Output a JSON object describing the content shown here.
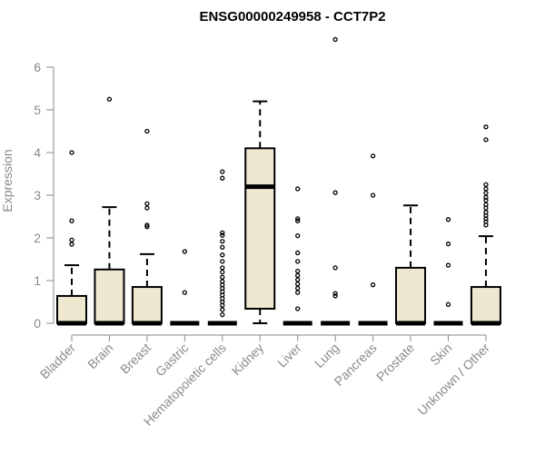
{
  "chart_data": {
    "type": "box",
    "title": "ENSG00000249958 - CCT7P2",
    "xlabel": "",
    "ylabel": "Expression",
    "ylim": [
      0,
      6.8
    ],
    "yticks": [
      "0",
      "1",
      "2",
      "3",
      "4",
      "5",
      "6"
    ],
    "grid": false,
    "box_fill": "#efe8d0",
    "box_stroke": "#000000",
    "axis_color": "#8a8a8a",
    "categories": [
      "Bladder",
      "Brain",
      "Breast",
      "Gastric",
      "Hematopoietic cells",
      "Kidney",
      "Liver",
      "Lung",
      "Pancreas",
      "Prostate",
      "Skin",
      "Unknown / Other"
    ],
    "boxes": [
      {
        "whisker_low": 0,
        "q1": 0,
        "median": 0,
        "q3": 0.64,
        "whisker_high": 1.36,
        "outliers": [
          1.85,
          1.95,
          2.4,
          4.0
        ]
      },
      {
        "whisker_low": 0,
        "q1": 0,
        "median": 0,
        "q3": 1.26,
        "whisker_high": 2.72,
        "outliers": [
          5.25
        ]
      },
      {
        "whisker_low": 0,
        "q1": 0,
        "median": 0,
        "q3": 0.85,
        "whisker_high": 1.62,
        "outliers": [
          2.26,
          2.3,
          2.7,
          2.8,
          4.5
        ]
      },
      {
        "whisker_low": 0,
        "q1": 0,
        "median": 0,
        "q3": 0,
        "whisker_high": 0,
        "outliers": [
          0.72,
          1.68
        ]
      },
      {
        "whisker_low": 0,
        "q1": 0,
        "median": 0,
        "q3": 0,
        "whisker_high": 0,
        "outliers": [
          0.2,
          0.32,
          0.42,
          0.5,
          0.58,
          0.66,
          0.74,
          0.82,
          0.9,
          0.98,
          1.08,
          1.2,
          1.3,
          1.45,
          1.6,
          1.78,
          1.92,
          2.06,
          2.12,
          3.4,
          3.55
        ]
      },
      {
        "whisker_low": 0,
        "q1": 0.34,
        "median": 3.2,
        "q3": 4.1,
        "whisker_high": 5.2,
        "outliers": []
      },
      {
        "whisker_low": 0,
        "q1": 0,
        "median": 0,
        "q3": 0,
        "whisker_high": 0,
        "outliers": [
          0.34,
          0.72,
          0.82,
          0.92,
          1.02,
          1.12,
          1.22,
          1.45,
          1.65,
          2.05,
          2.4,
          2.45,
          3.15
        ]
      },
      {
        "whisker_low": 0,
        "q1": 0,
        "median": 0,
        "q3": 0,
        "whisker_high": 0,
        "outliers": [
          0.64,
          0.7,
          1.3,
          3.06,
          6.65
        ]
      },
      {
        "whisker_low": 0,
        "q1": 0,
        "median": 0,
        "q3": 0,
        "whisker_high": 0,
        "outliers": [
          0.9,
          3.0,
          3.92
        ]
      },
      {
        "whisker_low": 0,
        "q1": 0,
        "median": 0,
        "q3": 1.3,
        "whisker_high": 2.76,
        "outliers": []
      },
      {
        "whisker_low": 0,
        "q1": 0,
        "median": 0,
        "q3": 0,
        "whisker_high": 0,
        "outliers": [
          0.44,
          1.36,
          1.86,
          2.43
        ]
      },
      {
        "whisker_low": 0,
        "q1": 0,
        "median": 0,
        "q3": 0.85,
        "whisker_high": 2.04,
        "outliers": [
          2.3,
          2.38,
          2.45,
          2.52,
          2.6,
          2.7,
          2.78,
          2.88,
          2.95,
          3.05,
          3.15,
          3.25,
          4.3,
          4.6
        ]
      }
    ]
  }
}
